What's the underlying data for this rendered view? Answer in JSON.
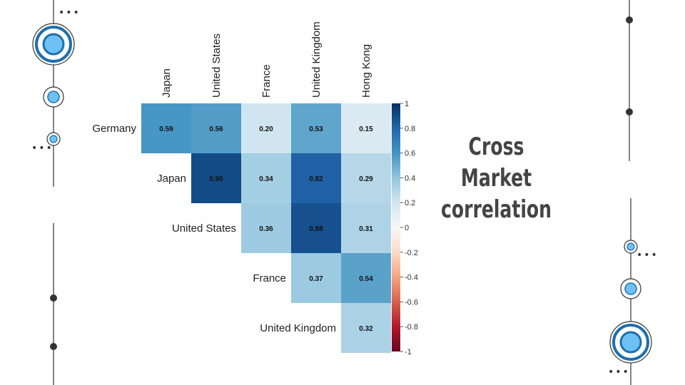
{
  "slide": {
    "title_lines": [
      "Cross",
      "Market",
      "correlation"
    ]
  },
  "colors": {
    "accent_fill": "#6ec1f4",
    "accent_stroke": "#1e6fae",
    "line_dark": "#333333",
    "positive_max": "#053061",
    "negative_max": "#67001f"
  },
  "chart_data": {
    "type": "heatmap",
    "title": "",
    "columns": [
      "Japan",
      "United States",
      "France",
      "United Kingdom",
      "Hong Kong"
    ],
    "rows": [
      "Germany",
      "Japan",
      "United States",
      "France",
      "United Kingdom"
    ],
    "values": [
      [
        0.59,
        0.56,
        0.2,
        0.53,
        0.15
      ],
      [
        null,
        0.9,
        0.34,
        0.82,
        0.29
      ],
      [
        null,
        null,
        0.36,
        0.88,
        0.31
      ],
      [
        null,
        null,
        null,
        0.37,
        0.54
      ],
      [
        null,
        null,
        null,
        null,
        0.32
      ]
    ],
    "colorbar": {
      "range": [
        -1,
        1
      ],
      "ticks": [
        "1",
        "0.8",
        "0.6",
        "0.4",
        "0.2",
        "0",
        "-0.2",
        "-0.4",
        "-0.6",
        "-0.8",
        "-1"
      ],
      "scheme": "RdBu diverging"
    }
  }
}
